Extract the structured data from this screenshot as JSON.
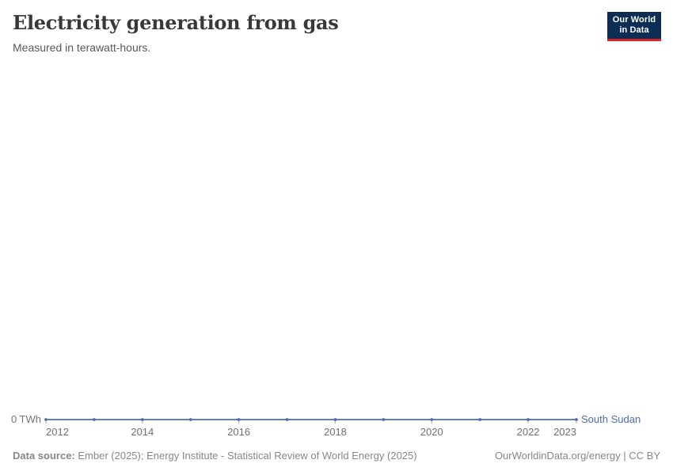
{
  "header": {
    "title": "Electricity generation from gas",
    "subtitle": "Measured in terawatt-hours.",
    "logo_line1": "Our World",
    "logo_line2": "in Data"
  },
  "chart_data": {
    "type": "line",
    "title": "Electricity generation from gas",
    "unit": "terawatt-hours",
    "x": [
      2012,
      2013,
      2014,
      2015,
      2016,
      2017,
      2018,
      2019,
      2020,
      2021,
      2022,
      2023
    ],
    "series": [
      {
        "name": "South Sudan",
        "values": [
          0,
          0,
          0,
          0,
          0,
          0,
          0,
          0,
          0,
          0,
          0,
          0
        ]
      }
    ],
    "x_tick_years": [
      2012,
      2014,
      2016,
      2018,
      2020,
      2022,
      2023
    ],
    "x_tick_labels": [
      "2012",
      "2014",
      "2016",
      "2018",
      "2020",
      "2022",
      "2023"
    ],
    "y_zero_label": "0 TWh",
    "xlim": [
      2012,
      2023
    ],
    "ylim": [
      0,
      0
    ],
    "grid": false,
    "legend_position": "end-of-line",
    "markers": true
  },
  "colors": {
    "series": "#4d6cb3",
    "axis_tick": "#a9a9a9",
    "logo_bg": "#0d2e54",
    "logo_accent": "#dc2427"
  },
  "footer": {
    "datasource_label": "Data source:",
    "datasource_text": "Ember (2025); Energy Institute - Statistical Review of World Energy (2025)",
    "rights": "OurWorldinData.org/energy | CC BY"
  }
}
